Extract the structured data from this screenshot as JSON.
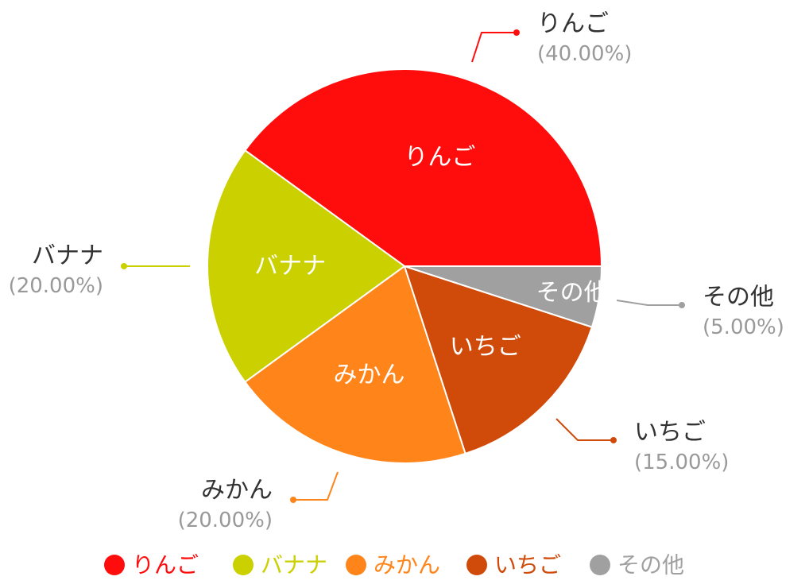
{
  "chart_data": {
    "type": "pie",
    "categories": [
      "りんご",
      "バナナ",
      "みかん",
      "いちご",
      "その他"
    ],
    "values": [
      40,
      20,
      20,
      15,
      5
    ],
    "percent_labels": [
      "(40.00%)",
      "(20.00%)",
      "(20.00%)",
      "(15.00%)",
      "(5.00%)"
    ],
    "colors": [
      "#ff0d0d",
      "#cbd000",
      "#ff851b",
      "#d04a0a",
      "#a0a0a0"
    ],
    "start_angle_deg": 0,
    "direction": "counterclockwise",
    "legend_placement": "bottom",
    "title": ""
  },
  "style": {
    "label_color": "#333333",
    "percent_color": "#999999",
    "inner_label_color": "#ffffff"
  }
}
